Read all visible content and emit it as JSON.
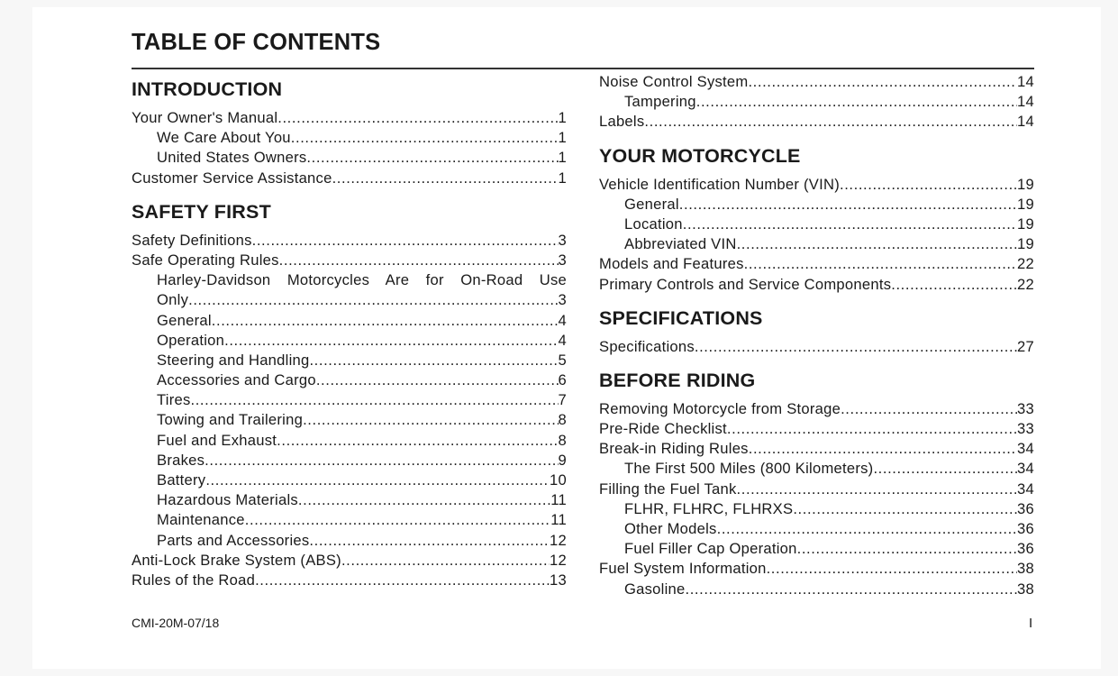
{
  "title": "TABLE OF CONTENTS",
  "columns": [
    [
      {
        "heading": "INTRODUCTION",
        "entries": [
          {
            "title": "Your Owner's Manual",
            "page": "1",
            "level": 1
          },
          {
            "title": "We Care About You",
            "page": "1",
            "level": 2
          },
          {
            "title": "United States Owners",
            "page": "1",
            "level": 2
          },
          {
            "title": "Customer Service Assistance",
            "page": "1",
            "level": 1
          }
        ]
      },
      {
        "heading": "SAFETY FIRST",
        "entries": [
          {
            "title": "Safety Definitions",
            "page": "3",
            "level": 1
          },
          {
            "title": "Safe Operating Rules",
            "page": "3",
            "level": 1
          },
          {
            "title_lines": [
              "Harley-Davidson Motorcycles Are for On-Road Use",
              "Only"
            ],
            "page": "3",
            "level": 2
          },
          {
            "title": "General",
            "page": "4",
            "level": 2
          },
          {
            "title": "Operation",
            "page": "4",
            "level": 2
          },
          {
            "title": "Steering and Handling",
            "page": "5",
            "level": 2
          },
          {
            "title": "Accessories and Cargo",
            "page": "6",
            "level": 2
          },
          {
            "title": "Tires",
            "page": "7",
            "level": 2
          },
          {
            "title": "Towing and Trailering",
            "page": "8",
            "level": 2
          },
          {
            "title": "Fuel and Exhaust",
            "page": "8",
            "level": 2
          },
          {
            "title": "Brakes",
            "page": "9",
            "level": 2
          },
          {
            "title": "Battery",
            "page": "10",
            "level": 2
          },
          {
            "title": "Hazardous Materials",
            "page": "11",
            "level": 2
          },
          {
            "title": "Maintenance",
            "page": "11",
            "level": 2
          },
          {
            "title": "Parts and Accessories",
            "page": "12",
            "level": 2
          },
          {
            "title": "Anti-Lock Brake System (ABS)",
            "page": "12",
            "level": 1
          },
          {
            "title": "Rules of the Road",
            "page": "13",
            "level": 1
          }
        ]
      }
    ],
    [
      {
        "heading": "",
        "entries": [
          {
            "title": "Noise Control System",
            "page": "14",
            "level": 1
          },
          {
            "title": "Tampering",
            "page": "14",
            "level": 2
          },
          {
            "title": "Labels",
            "page": "14",
            "level": 1
          }
        ]
      },
      {
        "heading": "YOUR MOTORCYCLE",
        "entries": [
          {
            "title": "Vehicle Identification Number (VIN)",
            "page": "19",
            "level": 1
          },
          {
            "title": "General",
            "page": "19",
            "level": 2
          },
          {
            "title": "Location",
            "page": "19",
            "level": 2
          },
          {
            "title": "Abbreviated VIN",
            "page": "19",
            "level": 2
          },
          {
            "title": "Models and Features",
            "page": "22",
            "level": 1
          },
          {
            "title": "Primary Controls and Service Components",
            "page": "22",
            "level": 1
          }
        ]
      },
      {
        "heading": "SPECIFICATIONS",
        "entries": [
          {
            "title": "Specifications",
            "page": "27",
            "level": 1
          }
        ]
      },
      {
        "heading": "BEFORE RIDING",
        "entries": [
          {
            "title": "Removing Motorcycle from Storage",
            "page": "33",
            "level": 1
          },
          {
            "title": "Pre-Ride Checklist",
            "page": "33",
            "level": 1
          },
          {
            "title": "Break-in Riding Rules",
            "page": "34",
            "level": 1
          },
          {
            "title": "The First 500 Miles (800 Kilometers)",
            "page": "34",
            "level": 2
          },
          {
            "title": "Filling the Fuel Tank",
            "page": "34",
            "level": 1
          },
          {
            "title": "FLHR, FLHRC, FLHRXS",
            "page": "36",
            "level": 2
          },
          {
            "title": "Other Models",
            "page": "36",
            "level": 2
          },
          {
            "title": "Fuel Filler Cap Operation",
            "page": "36",
            "level": 2
          },
          {
            "title": "Fuel System Information",
            "page": "38",
            "level": 1
          },
          {
            "title": "Gasoline",
            "page": "38",
            "level": 2
          }
        ]
      }
    ]
  ],
  "footer": {
    "code": "CMI-20M-07/18",
    "page_number": "I"
  }
}
